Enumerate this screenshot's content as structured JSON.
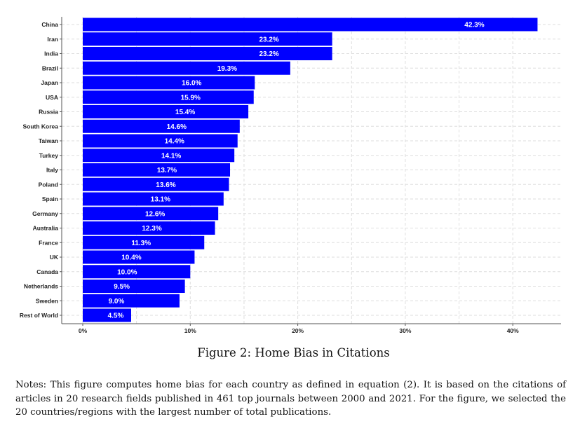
{
  "chart_data": {
    "type": "bar",
    "orientation": "horizontal",
    "categories": [
      "China",
      "Iran",
      "India",
      "Brazil",
      "Japan",
      "USA",
      "Russia",
      "South Korea",
      "Taiwan",
      "Turkey",
      "Italy",
      "Poland",
      "Spain",
      "Germany",
      "Australia",
      "France",
      "UK",
      "Canada",
      "Netherlands",
      "Sweden",
      "Rest of World"
    ],
    "values": [
      42.3,
      23.2,
      23.2,
      19.3,
      16.0,
      15.9,
      15.4,
      14.6,
      14.4,
      14.1,
      13.7,
      13.6,
      13.1,
      12.6,
      12.3,
      11.3,
      10.4,
      10.0,
      9.5,
      9.0,
      4.5
    ],
    "value_labels": [
      "42.3%",
      "23.2%",
      "23.2%",
      "19.3%",
      "16.0%",
      "15.9%",
      "15.4%",
      "14.6%",
      "14.4%",
      "14.1%",
      "13.7%",
      "13.6%",
      "13.1%",
      "12.6%",
      "12.3%",
      "11.3%",
      "10.4%",
      "10.0%",
      "9.5%",
      "9.0%",
      "4.5%"
    ],
    "x_ticks": [
      0,
      10,
      20,
      30,
      40
    ],
    "x_tick_labels": [
      "0%",
      "10%",
      "20%",
      "30%",
      "40%"
    ],
    "xlim": [
      0,
      44.6
    ],
    "bar_color": "#0000ff",
    "grid": true,
    "xlabel": "",
    "ylabel": ""
  },
  "caption": "Figure 2: Home Bias in Citations",
  "notes": "Notes: This figure computes home bias for each country as defined in equation (2). It is based on the citations of articles in 20 research fields published in 461 top journals between 2000 and 2021. For the figure, we selected the 20 countries/regions with the largest number of total publications."
}
